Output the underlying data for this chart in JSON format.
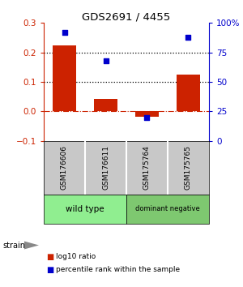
{
  "title": "GDS2691 / 4455",
  "samples": [
    "GSM176606",
    "GSM176611",
    "GSM175764",
    "GSM175765"
  ],
  "log10_ratio": [
    0.225,
    0.042,
    -0.018,
    0.125
  ],
  "percentile_rank": [
    92,
    68,
    20,
    88
  ],
  "bar_color": "#CC2200",
  "dot_color": "#0000CC",
  "ylim_left": [
    -0.1,
    0.3
  ],
  "ylim_right": [
    0,
    100
  ],
  "yticks_left": [
    -0.1,
    0.0,
    0.1,
    0.2,
    0.3
  ],
  "yticks_right": [
    0,
    25,
    50,
    75,
    100
  ],
  "bar_width": 0.55,
  "group_label_left": "wild type",
  "group_label_right": "dominant negative",
  "group_color_left": "#90EE90",
  "group_color_right": "#7EC870",
  "sample_bg_color": "#C8C8C8",
  "strain_label": "strain",
  "legend_red_label": "log10 ratio",
  "legend_blue_label": "percentile rank within the sample",
  "background_color": "#ffffff"
}
